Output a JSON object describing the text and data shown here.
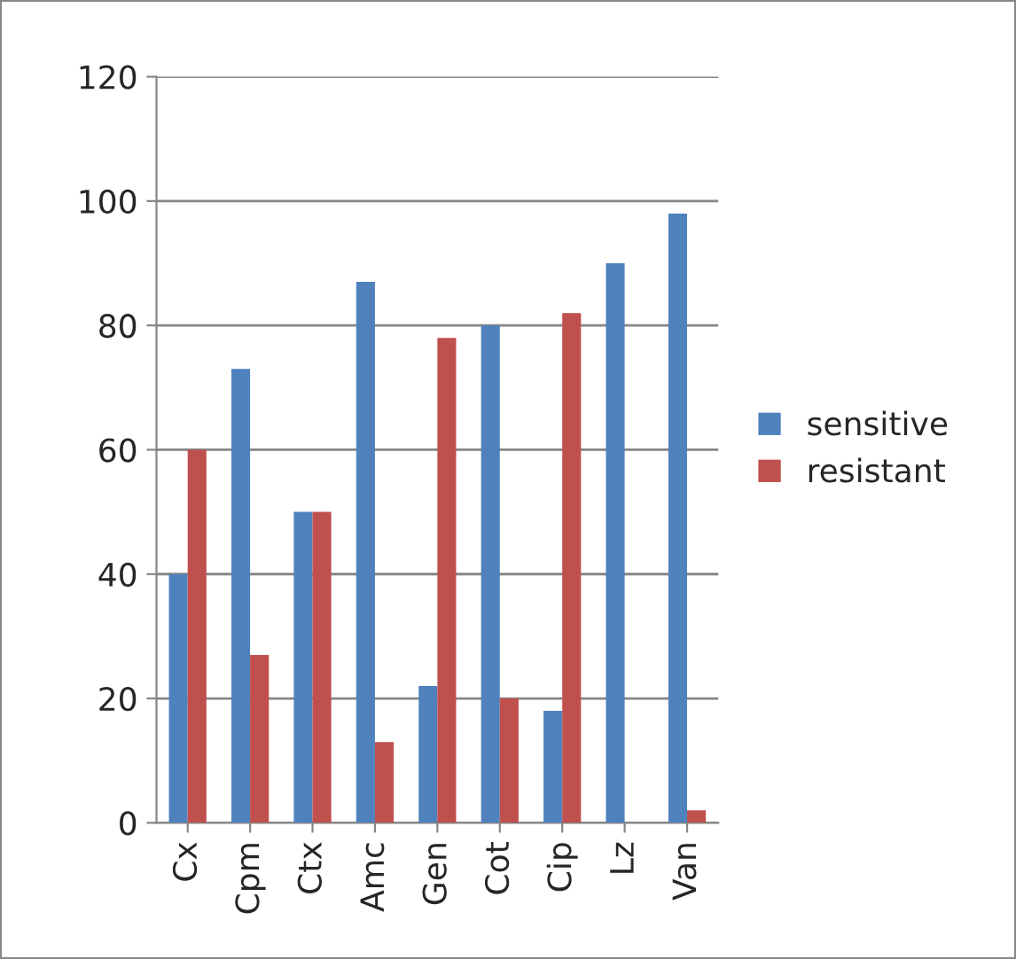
{
  "chart_data": {
    "type": "bar",
    "categories": [
      "Cx",
      "Cpm",
      "Ctx",
      "Amc",
      "Gen",
      "Cot",
      "Cip",
      "Lz",
      "Van"
    ],
    "series": [
      {
        "name": "sensitive",
        "color": "#4f81bd",
        "values": [
          40,
          73,
          50,
          87,
          22,
          80,
          18,
          90,
          98
        ]
      },
      {
        "name": "resistant",
        "color": "#c0504d",
        "values": [
          60,
          27,
          50,
          13,
          78,
          20,
          82,
          null,
          2
        ]
      }
    ],
    "ylim": [
      0,
      120
    ],
    "yticks": [
      0,
      20,
      40,
      60,
      80,
      100,
      120
    ],
    "grid": "y",
    "legend": "right"
  }
}
